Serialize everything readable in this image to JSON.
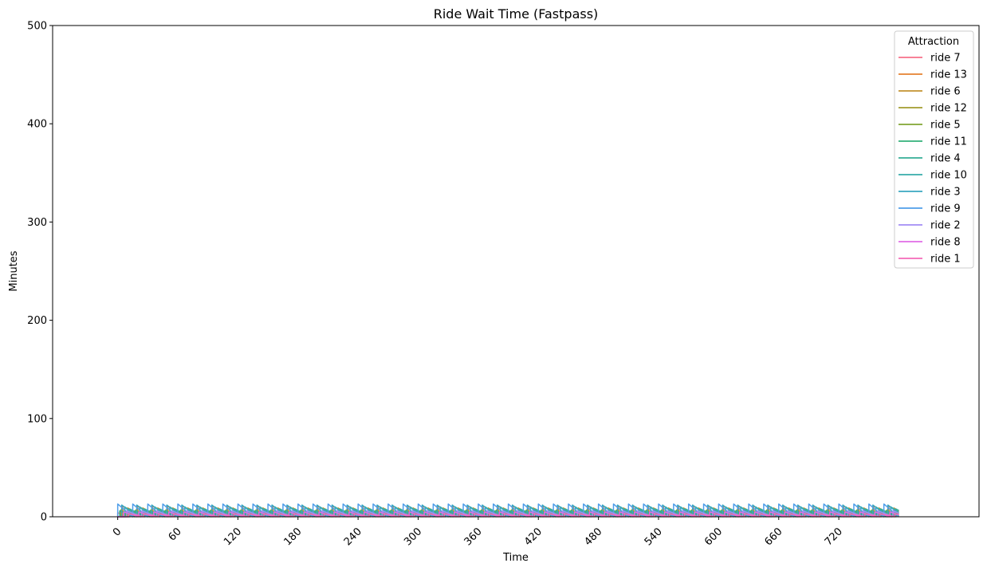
{
  "chart_data": {
    "type": "line",
    "title": "Ride Wait Time (Fastpass)",
    "xlabel": "Time",
    "ylabel": "Minutes",
    "xlim": [
      -65,
      860
    ],
    "ylim": [
      0,
      500
    ],
    "xticks": [
      0,
      60,
      120,
      180,
      240,
      300,
      360,
      420,
      480,
      540,
      600,
      660,
      720
    ],
    "yticks": [
      0,
      100,
      200,
      300,
      400,
      500
    ],
    "grid": false,
    "legend": {
      "title": "Attraction",
      "placement": "top-right"
    },
    "x_range": [
      0,
      780
    ],
    "series": [
      {
        "name": "ride 7",
        "color": "#f77189",
        "period": 15,
        "phase": 0,
        "peak": 4
      },
      {
        "name": "ride 13",
        "color": "#e5802f",
        "period": 15,
        "phase": 5,
        "peak": 11
      },
      {
        "name": "ride 6",
        "color": "#c39330",
        "period": 15,
        "phase": 10,
        "peak": 9
      },
      {
        "name": "ride 12",
        "color": "#a39b2d",
        "period": 15,
        "phase": 3,
        "peak": 7
      },
      {
        "name": "ride 5",
        "color": "#80a532",
        "period": 15,
        "phase": 8,
        "peak": 5
      },
      {
        "name": "ride 11",
        "color": "#33b07a",
        "period": 15,
        "phase": 2,
        "peak": 6
      },
      {
        "name": "ride 4",
        "color": "#35ae96",
        "period": 15,
        "phase": 12,
        "peak": 8
      },
      {
        "name": "ride 10",
        "color": "#36abaa",
        "period": 15,
        "phase": 7,
        "peak": 10
      },
      {
        "name": "ride 3",
        "color": "#39a7c0",
        "period": 15,
        "phase": 4,
        "peak": 12
      },
      {
        "name": "ride 9",
        "color": "#4f9ee9",
        "period": 15,
        "phase": 0,
        "peak": 13
      },
      {
        "name": "ride 2",
        "color": "#a38df5",
        "period": 15,
        "phase": 9,
        "peak": 6
      },
      {
        "name": "ride 8",
        "color": "#e16be6",
        "period": 15,
        "phase": 6,
        "peak": 5
      },
      {
        "name": "ride 1",
        "color": "#f569b8",
        "period": 15,
        "phase": 11,
        "peak": 3
      }
    ]
  }
}
